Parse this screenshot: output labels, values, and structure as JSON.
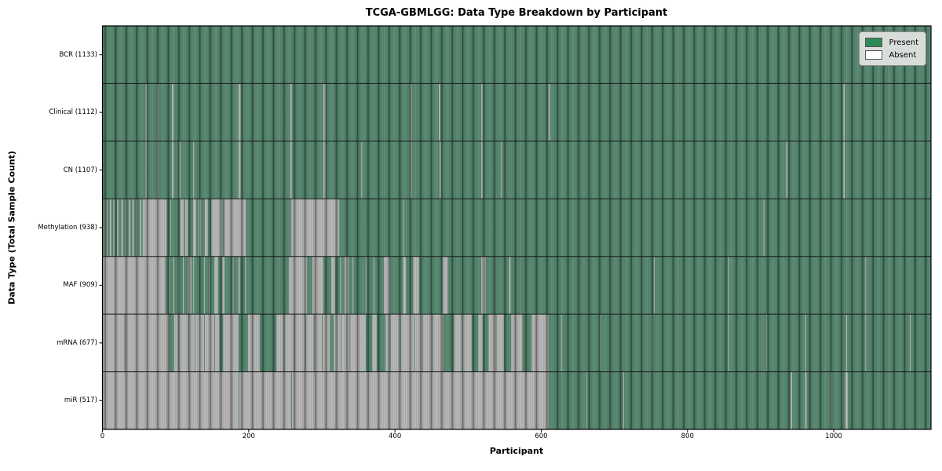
{
  "chart_data": {
    "type": "heatmap",
    "title": "TCGA-GBMLGG: Data Type Breakdown by Participant",
    "xlabel": "Participant",
    "ylabel": "Data Type (Total Sample Count)",
    "x_ticks": [
      0,
      200,
      400,
      600,
      800,
      1000
    ],
    "n_participants": 1133,
    "grid": false,
    "legend_position": "upper right",
    "colors": {
      "present_base": "#40795d",
      "absent_base": "#acacac",
      "legend_present": "#2e8b57",
      "legend_absent": "#ffffff",
      "separator": "#1a1a1a"
    },
    "legend": [
      {
        "label": "Present",
        "color": "#2e8b57"
      },
      {
        "label": "Absent",
        "color": "#ffffff"
      }
    ],
    "rows": [
      {
        "label": "BCR (1133)",
        "name": "BCR",
        "total": 1133,
        "absent": []
      },
      {
        "label": "Clinical (1112)",
        "name": "Clinical",
        "total": 1112,
        "absent": [
          [
            59,
            61
          ],
          [
            75,
            77
          ],
          [
            95,
            97
          ],
          [
            186,
            189
          ],
          [
            257,
            259
          ],
          [
            302,
            305
          ],
          [
            421,
            423
          ],
          [
            460,
            462
          ],
          [
            518,
            520
          ],
          [
            610,
            612
          ],
          [
            1013,
            1015
          ]
        ]
      },
      {
        "label": "CN (1107)",
        "name": "CN",
        "total": 1107,
        "absent": [
          [
            59,
            61
          ],
          [
            75,
            77
          ],
          [
            95,
            97
          ],
          [
            105,
            107
          ],
          [
            124,
            125
          ],
          [
            186,
            189
          ],
          [
            257,
            259
          ],
          [
            302,
            305
          ],
          [
            354,
            355
          ],
          [
            421,
            423
          ],
          [
            461,
            463
          ],
          [
            518,
            520
          ],
          [
            545,
            546
          ],
          [
            935,
            937
          ],
          [
            1013,
            1015
          ]
        ]
      },
      {
        "label": "Methylation (938)",
        "name": "Methylation",
        "total": 938,
        "absent": [
          [
            0,
            1
          ],
          [
            3,
            4
          ],
          [
            6,
            7
          ],
          [
            10,
            12
          ],
          [
            15,
            17
          ],
          [
            20,
            22
          ],
          [
            26,
            28
          ],
          [
            31,
            33
          ],
          [
            36,
            38
          ],
          [
            41,
            43
          ],
          [
            46,
            48
          ],
          [
            51,
            53
          ],
          [
            55,
            88
          ],
          [
            93,
            94
          ],
          [
            106,
            111
          ],
          [
            113,
            117
          ],
          [
            124,
            128
          ],
          [
            131,
            135
          ],
          [
            140,
            144
          ],
          [
            149,
            164
          ],
          [
            167,
            196
          ],
          [
            258,
            324
          ],
          [
            411,
            412
          ],
          [
            904,
            905
          ]
        ]
      },
      {
        "label": "MAF (909)",
        "name": "MAF",
        "total": 909,
        "absent": [
          [
            0,
            86
          ],
          [
            91,
            92
          ],
          [
            97,
            98
          ],
          [
            104,
            105
          ],
          [
            110,
            111
          ],
          [
            117,
            122
          ],
          [
            124,
            125
          ],
          [
            139,
            140
          ],
          [
            146,
            147
          ],
          [
            153,
            158
          ],
          [
            164,
            167
          ],
          [
            178,
            179
          ],
          [
            186,
            188
          ],
          [
            195,
            196
          ],
          [
            255,
            280
          ],
          [
            287,
            302
          ],
          [
            313,
            318
          ],
          [
            325,
            326
          ],
          [
            331,
            337
          ],
          [
            342,
            343
          ],
          [
            360,
            361
          ],
          [
            371,
            372
          ],
          [
            385,
            393
          ],
          [
            411,
            415
          ],
          [
            425,
            433
          ],
          [
            465,
            472
          ],
          [
            518,
            524
          ],
          [
            556,
            558
          ],
          [
            754,
            755
          ],
          [
            856,
            857
          ],
          [
            1043,
            1044
          ]
        ]
      },
      {
        "label": "mRNA (677)",
        "name": "mRNA",
        "total": 677,
        "absent": [
          [
            0,
            30
          ],
          [
            31,
            91
          ],
          [
            98,
            104
          ],
          [
            105,
            117
          ],
          [
            118,
            126
          ],
          [
            127,
            139
          ],
          [
            140,
            153
          ],
          [
            154,
            160
          ],
          [
            165,
            186
          ],
          [
            199,
            215
          ],
          [
            238,
            248
          ],
          [
            249,
            262
          ],
          [
            263,
            277
          ],
          [
            278,
            289
          ],
          [
            290,
            300
          ],
          [
            301,
            311
          ],
          [
            316,
            326
          ],
          [
            327,
            338
          ],
          [
            339,
            360
          ],
          [
            369,
            375
          ],
          [
            387,
            393
          ],
          [
            394,
            407
          ],
          [
            408,
            426
          ],
          [
            427,
            437
          ],
          [
            438,
            451
          ],
          [
            452,
            466
          ],
          [
            481,
            491
          ],
          [
            492,
            505
          ],
          [
            514,
            520
          ],
          [
            528,
            538
          ],
          [
            539,
            549
          ],
          [
            559,
            574
          ],
          [
            587,
            610
          ],
          [
            627,
            628
          ],
          [
            681,
            682
          ],
          [
            751,
            752
          ],
          [
            856,
            857
          ],
          [
            908,
            909
          ],
          [
            961,
            962
          ],
          [
            1017,
            1018
          ],
          [
            1043,
            1044
          ],
          [
            1104,
            1105
          ]
        ]
      },
      {
        "label": "miR (517)",
        "name": "miR",
        "total": 517,
        "absent": [
          [
            0,
            186
          ],
          [
            187,
            258
          ],
          [
            259,
            610
          ],
          [
            662,
            663
          ],
          [
            712,
            713
          ],
          [
            941,
            943
          ],
          [
            961,
            963
          ],
          [
            996,
            997
          ],
          [
            1016,
            1019
          ]
        ]
      }
    ]
  }
}
